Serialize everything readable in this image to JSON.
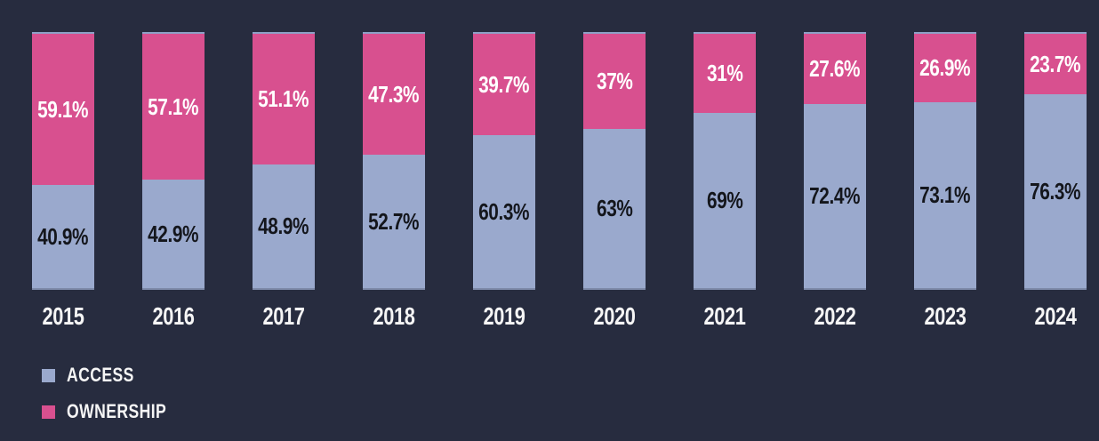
{
  "chart_data": {
    "type": "bar",
    "subtype": "stacked-percentage",
    "categories": [
      "2015",
      "2016",
      "2017",
      "2018",
      "2019",
      "2020",
      "2021",
      "2022",
      "2023",
      "2024"
    ],
    "series": [
      {
        "name": "ACCESS",
        "color": "#9aa9cd",
        "label_color": "#14161c",
        "values": [
          40.9,
          42.9,
          48.9,
          52.7,
          60.3,
          63,
          69,
          72.4,
          73.1,
          76.3
        ]
      },
      {
        "name": "OWNERSHIP",
        "color": "#d8508f",
        "label_color": "#ffffff",
        "values": [
          59.1,
          57.1,
          51.1,
          47.3,
          39.7,
          37,
          31,
          27.6,
          26.9,
          23.7
        ]
      }
    ],
    "value_suffix": "%",
    "ylim": [
      0,
      100
    ],
    "grid": false,
    "legend_position": "bottom-left",
    "background_color": "#272c3f",
    "bar_cap_color": "#8da0c6"
  },
  "legend": {
    "items": [
      {
        "label": "ACCESS",
        "color": "#9aa9cd"
      },
      {
        "label": "OWNERSHIP",
        "color": "#d8508f"
      }
    ]
  }
}
